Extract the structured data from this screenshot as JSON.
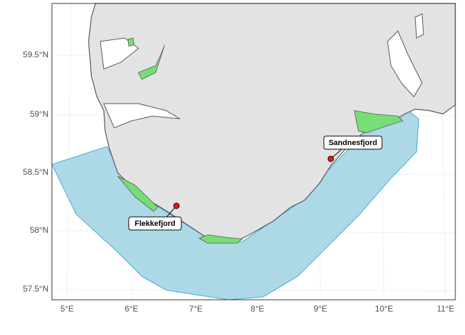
{
  "map": {
    "lat_labels": [
      "59.5°N",
      "59°N",
      "58.5°N",
      "58°N",
      "57.5°N"
    ],
    "lon_labels": [
      "5°E",
      "6°E",
      "7°E",
      "8°E",
      "9°E",
      "10°E",
      "11°E"
    ],
    "places": [
      {
        "label": "Sandnesfjord"
      },
      {
        "label": "Flekkefjord"
      }
    ]
  }
}
